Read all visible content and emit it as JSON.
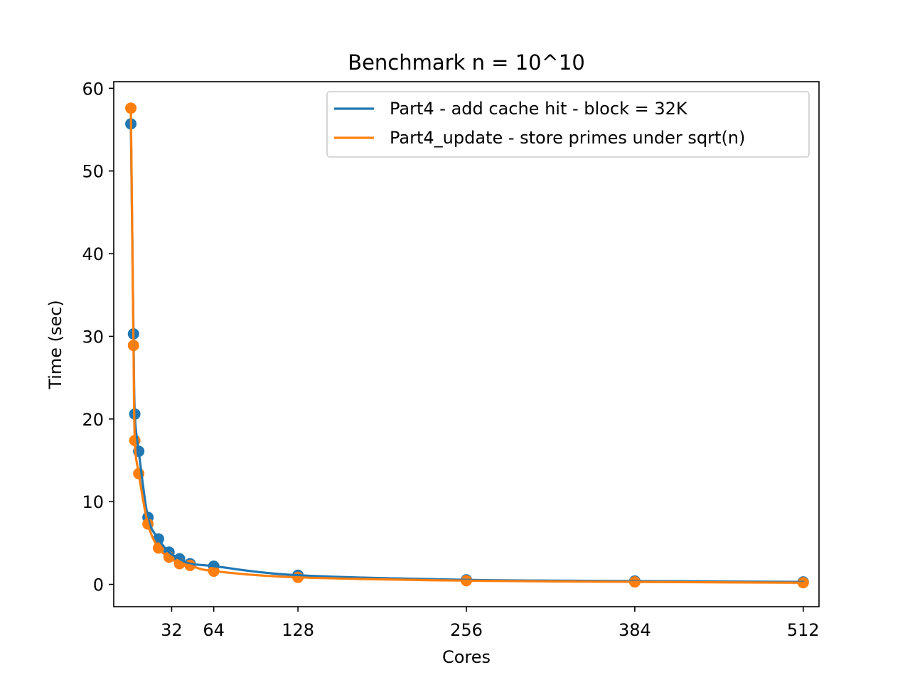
{
  "chart_data": {
    "type": "line",
    "title": "Benchmark n = 10^10",
    "xlabel": "Cores",
    "ylabel": "Time (sec)",
    "xlim": [
      -12,
      524
    ],
    "ylim": [
      -2.7,
      60.8
    ],
    "xticks": [
      32,
      64,
      128,
      256,
      384,
      512
    ],
    "yticks": [
      0,
      10,
      20,
      30,
      40,
      50,
      60
    ],
    "grid": false,
    "legend_position": "top-right",
    "markers": true,
    "series": [
      {
        "name": "Part4 - add cache hit - block = 32K",
        "color": "#1f77b4",
        "points": [
          {
            "x": 1,
            "y": 55.7
          },
          {
            "x": 3,
            "y": 30.3
          },
          {
            "x": 4,
            "y": 20.6
          },
          {
            "x": 7,
            "y": 16.1
          },
          {
            "x": 14,
            "y": 8.1
          },
          {
            "x": 22,
            "y": 5.5
          },
          {
            "x": 30,
            "y": 3.9
          },
          {
            "x": 38,
            "y": 3.1
          },
          {
            "x": 46,
            "y": 2.5
          },
          {
            "x": 64,
            "y": 2.2
          },
          {
            "x": 128,
            "y": 1.1
          },
          {
            "x": 256,
            "y": 0.55
          },
          {
            "x": 384,
            "y": 0.4
          },
          {
            "x": 512,
            "y": 0.3
          }
        ]
      },
      {
        "name": "Part4_update - store primes under sqrt(n)",
        "color": "#ff7f0e",
        "points": [
          {
            "x": 1,
            "y": 57.6
          },
          {
            "x": 3,
            "y": 28.9
          },
          {
            "x": 4,
            "y": 17.4
          },
          {
            "x": 7,
            "y": 13.4
          },
          {
            "x": 14,
            "y": 7.3
          },
          {
            "x": 22,
            "y": 4.4
          },
          {
            "x": 30,
            "y": 3.3
          },
          {
            "x": 38,
            "y": 2.5
          },
          {
            "x": 46,
            "y": 2.3
          },
          {
            "x": 64,
            "y": 1.6
          },
          {
            "x": 128,
            "y": 0.85
          },
          {
            "x": 256,
            "y": 0.45
          },
          {
            "x": 384,
            "y": 0.3
          },
          {
            "x": 512,
            "y": 0.2
          }
        ]
      }
    ]
  }
}
